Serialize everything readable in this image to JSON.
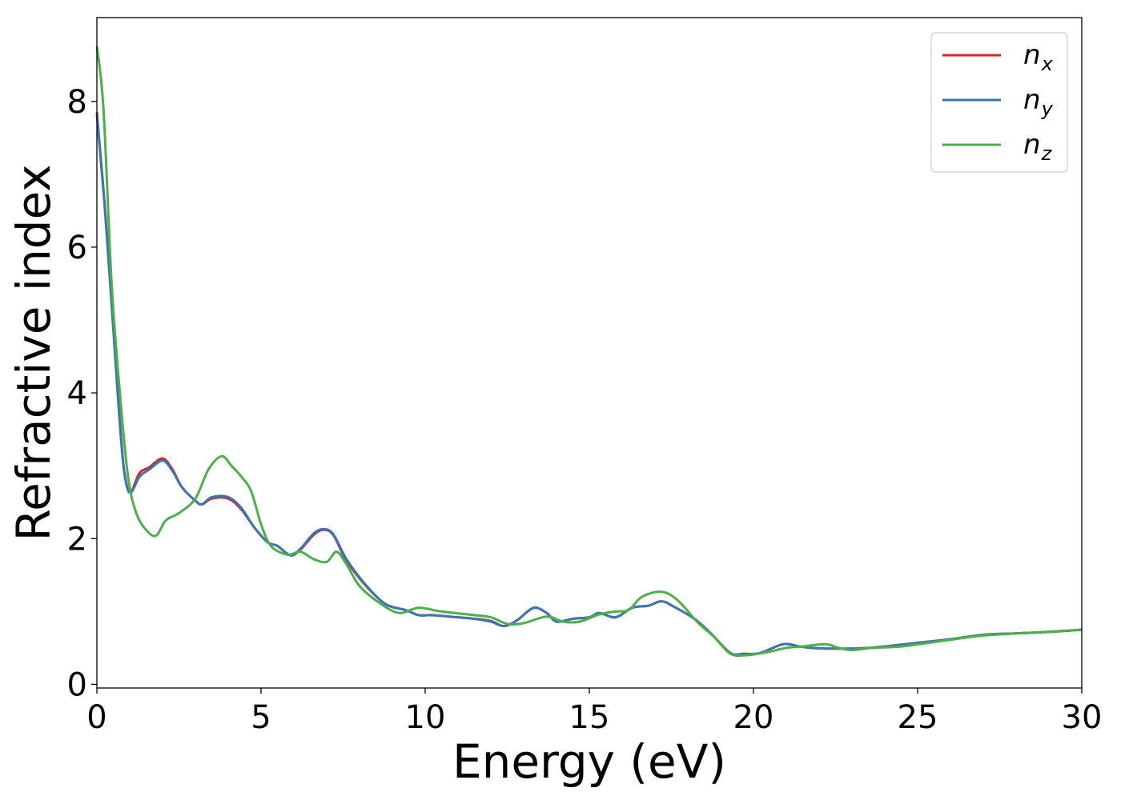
{
  "chart_data": {
    "type": "line",
    "xlabel": "Energy (eV)",
    "ylabel": "Refractive index",
    "xlim": [
      0,
      30
    ],
    "ylim": [
      -0.05,
      9.15
    ],
    "xticks": [
      0,
      5,
      10,
      15,
      20,
      25,
      30
    ],
    "yticks": [
      0,
      2,
      4,
      6,
      8
    ],
    "grid": false,
    "legend_position": "top-right",
    "series": [
      {
        "name": "n",
        "subscript": "x",
        "color": "#d62728",
        "points": [
          [
            0,
            7.85
          ],
          [
            0.25,
            6.5
          ],
          [
            0.5,
            4.9
          ],
          [
            0.75,
            3.3
          ],
          [
            0.9,
            2.75
          ],
          [
            1.05,
            2.65
          ],
          [
            1.3,
            2.9
          ],
          [
            1.6,
            2.98
          ],
          [
            2.0,
            3.1
          ],
          [
            2.3,
            2.95
          ],
          [
            2.6,
            2.7
          ],
          [
            3.0,
            2.52
          ],
          [
            3.2,
            2.47
          ],
          [
            3.5,
            2.55
          ],
          [
            4.0,
            2.55
          ],
          [
            4.4,
            2.4
          ],
          [
            4.8,
            2.15
          ],
          [
            5.2,
            1.95
          ],
          [
            5.5,
            1.9
          ],
          [
            5.9,
            1.77
          ],
          [
            6.2,
            1.85
          ],
          [
            6.6,
            2.05
          ],
          [
            6.9,
            2.12
          ],
          [
            7.2,
            2.05
          ],
          [
            7.6,
            1.7
          ],
          [
            8.2,
            1.35
          ],
          [
            8.8,
            1.1
          ],
          [
            9.4,
            1.02
          ],
          [
            9.8,
            0.95
          ],
          [
            10.2,
            0.95
          ],
          [
            11.0,
            0.92
          ],
          [
            11.5,
            0.9
          ],
          [
            12.0,
            0.87
          ],
          [
            12.4,
            0.8
          ],
          [
            12.8,
            0.88
          ],
          [
            13.3,
            1.05
          ],
          [
            13.7,
            0.98
          ],
          [
            14.0,
            0.86
          ],
          [
            14.5,
            0.9
          ],
          [
            15.0,
            0.92
          ],
          [
            15.3,
            0.98
          ],
          [
            15.8,
            0.92
          ],
          [
            16.3,
            1.05
          ],
          [
            16.8,
            1.08
          ],
          [
            17.2,
            1.14
          ],
          [
            17.6,
            1.06
          ],
          [
            18.2,
            0.9
          ],
          [
            18.7,
            0.7
          ],
          [
            19.3,
            0.43
          ],
          [
            19.7,
            0.42
          ],
          [
            20.2,
            0.43
          ],
          [
            20.9,
            0.55
          ],
          [
            21.4,
            0.52
          ],
          [
            21.8,
            0.5
          ],
          [
            22.5,
            0.49
          ],
          [
            23.5,
            0.5
          ],
          [
            25.0,
            0.57
          ],
          [
            26.0,
            0.62
          ],
          [
            27.0,
            0.68
          ],
          [
            28.0,
            0.7
          ],
          [
            29.0,
            0.72
          ],
          [
            30.0,
            0.75
          ]
        ]
      },
      {
        "name": "n",
        "subscript": "y",
        "color": "#3a76b0",
        "points": [
          [
            0,
            7.82
          ],
          [
            0.25,
            6.48
          ],
          [
            0.5,
            4.88
          ],
          [
            0.75,
            3.28
          ],
          [
            0.9,
            2.74
          ],
          [
            1.05,
            2.64
          ],
          [
            1.3,
            2.85
          ],
          [
            1.6,
            2.95
          ],
          [
            2.0,
            3.07
          ],
          [
            2.3,
            2.93
          ],
          [
            2.6,
            2.7
          ],
          [
            3.0,
            2.52
          ],
          [
            3.2,
            2.47
          ],
          [
            3.5,
            2.57
          ],
          [
            4.0,
            2.57
          ],
          [
            4.4,
            2.42
          ],
          [
            4.8,
            2.15
          ],
          [
            5.2,
            1.95
          ],
          [
            5.5,
            1.9
          ],
          [
            5.9,
            1.77
          ],
          [
            6.2,
            1.86
          ],
          [
            6.6,
            2.07
          ],
          [
            6.9,
            2.13
          ],
          [
            7.2,
            2.06
          ],
          [
            7.6,
            1.72
          ],
          [
            8.2,
            1.36
          ],
          [
            8.8,
            1.1
          ],
          [
            9.4,
            1.02
          ],
          [
            9.8,
            0.95
          ],
          [
            10.2,
            0.95
          ],
          [
            11.0,
            0.92
          ],
          [
            11.5,
            0.9
          ],
          [
            12.0,
            0.86
          ],
          [
            12.4,
            0.8
          ],
          [
            12.8,
            0.88
          ],
          [
            13.3,
            1.05
          ],
          [
            13.7,
            0.98
          ],
          [
            14.0,
            0.86
          ],
          [
            14.5,
            0.9
          ],
          [
            15.0,
            0.92
          ],
          [
            15.3,
            0.98
          ],
          [
            15.8,
            0.92
          ],
          [
            16.3,
            1.05
          ],
          [
            16.8,
            1.08
          ],
          [
            17.2,
            1.14
          ],
          [
            17.6,
            1.06
          ],
          [
            18.2,
            0.9
          ],
          [
            18.7,
            0.7
          ],
          [
            19.3,
            0.43
          ],
          [
            19.7,
            0.42
          ],
          [
            20.2,
            0.43
          ],
          [
            20.9,
            0.55
          ],
          [
            21.4,
            0.52
          ],
          [
            21.8,
            0.5
          ],
          [
            22.5,
            0.49
          ],
          [
            23.5,
            0.5
          ],
          [
            25.0,
            0.57
          ],
          [
            26.0,
            0.62
          ],
          [
            27.0,
            0.68
          ],
          [
            28.0,
            0.7
          ],
          [
            29.0,
            0.72
          ],
          [
            30.0,
            0.75
          ]
        ]
      },
      {
        "name": "n",
        "subscript": "z",
        "color": "#4daf4a",
        "points": [
          [
            0,
            8.75
          ],
          [
            0.2,
            7.9
          ],
          [
            0.45,
            5.5
          ],
          [
            0.7,
            4.0
          ],
          [
            0.95,
            2.85
          ],
          [
            1.2,
            2.35
          ],
          [
            1.5,
            2.12
          ],
          [
            1.8,
            2.04
          ],
          [
            2.1,
            2.25
          ],
          [
            2.5,
            2.35
          ],
          [
            3.0,
            2.55
          ],
          [
            3.4,
            2.95
          ],
          [
            3.8,
            3.13
          ],
          [
            4.1,
            3.0
          ],
          [
            4.4,
            2.85
          ],
          [
            4.7,
            2.65
          ],
          [
            5.0,
            2.2
          ],
          [
            5.3,
            1.9
          ],
          [
            5.8,
            1.78
          ],
          [
            6.2,
            1.82
          ],
          [
            6.6,
            1.72
          ],
          [
            7.0,
            1.68
          ],
          [
            7.3,
            1.82
          ],
          [
            7.6,
            1.65
          ],
          [
            8.0,
            1.35
          ],
          [
            8.6,
            1.12
          ],
          [
            9.2,
            0.98
          ],
          [
            9.8,
            1.05
          ],
          [
            10.5,
            1.0
          ],
          [
            11.5,
            0.95
          ],
          [
            12.0,
            0.92
          ],
          [
            12.5,
            0.83
          ],
          [
            13.0,
            0.84
          ],
          [
            13.7,
            0.93
          ],
          [
            14.2,
            0.86
          ],
          [
            14.7,
            0.86
          ],
          [
            15.3,
            0.96
          ],
          [
            15.8,
            1.0
          ],
          [
            16.2,
            1.02
          ],
          [
            16.6,
            1.2
          ],
          [
            17.2,
            1.27
          ],
          [
            17.7,
            1.15
          ],
          [
            18.3,
            0.85
          ],
          [
            18.8,
            0.65
          ],
          [
            19.3,
            0.42
          ],
          [
            19.8,
            0.4
          ],
          [
            20.4,
            0.44
          ],
          [
            21.0,
            0.5
          ],
          [
            21.5,
            0.52
          ],
          [
            22.2,
            0.55
          ],
          [
            22.6,
            0.5
          ],
          [
            23.0,
            0.47
          ],
          [
            23.6,
            0.5
          ],
          [
            24.5,
            0.52
          ],
          [
            25.5,
            0.58
          ],
          [
            27.0,
            0.67
          ],
          [
            28.5,
            0.71
          ],
          [
            30.0,
            0.75
          ]
        ]
      }
    ]
  }
}
